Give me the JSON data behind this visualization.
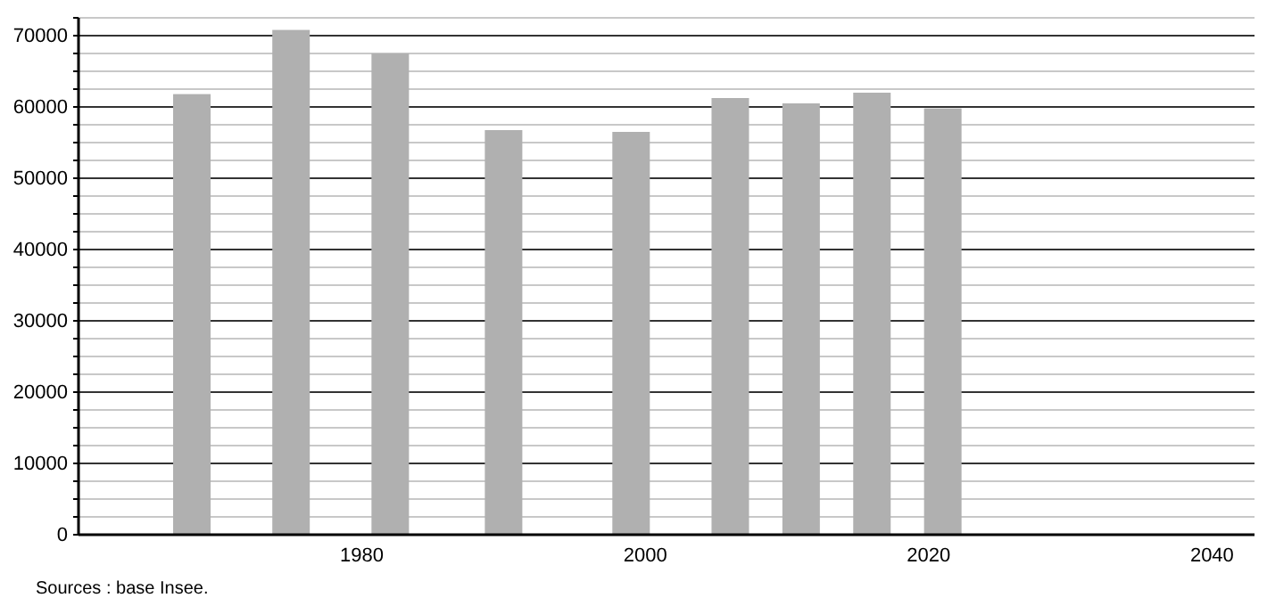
{
  "chart_data": {
    "type": "bar",
    "x": [
      1968,
      1975,
      1982,
      1990,
      1999,
      2006,
      2011,
      2016,
      2021
    ],
    "values": [
      61800,
      70800,
      67500,
      56750,
      56500,
      61250,
      60500,
      62000,
      59800
    ],
    "color": "#b0b0b0",
    "xlim": [
      1960,
      2043
    ],
    "xticks": [
      1980,
      2000,
      2020,
      2040
    ],
    "ylim": [
      0,
      72500
    ],
    "yticks": [
      0,
      {
        "value": 2500,
        "label": null
      },
      {
        "value": 5000,
        "label": null
      },
      {
        "value": 7500,
        "label": null
      },
      10000,
      {
        "value": 12500,
        "label": null
      },
      {
        "value": 15000,
        "label": null
      },
      {
        "value": 17500,
        "label": null
      },
      20000,
      {
        "value": 22500,
        "label": null
      },
      {
        "value": 25000,
        "label": null
      },
      {
        "value": 27500,
        "label": null
      },
      30000,
      {
        "value": 32500,
        "label": null
      },
      {
        "value": 35000,
        "label": null
      },
      {
        "value": 37500,
        "label": null
      },
      40000,
      {
        "value": 42500,
        "label": null
      },
      {
        "value": 45000,
        "label": null
      },
      {
        "value": 47500,
        "label": null
      },
      50000,
      {
        "value": 52500,
        "label": null
      },
      {
        "value": 55000,
        "label": null
      },
      {
        "value": 57500,
        "label": null
      },
      60000,
      {
        "value": 62500,
        "label": null
      },
      {
        "value": 65000,
        "label": null
      },
      {
        "value": 67500,
        "label": null
      },
      70000,
      {
        "value": 72500,
        "label": null
      }
    ],
    "grid": "y",
    "annotations": [
      "Sources : base Insee."
    ]
  }
}
